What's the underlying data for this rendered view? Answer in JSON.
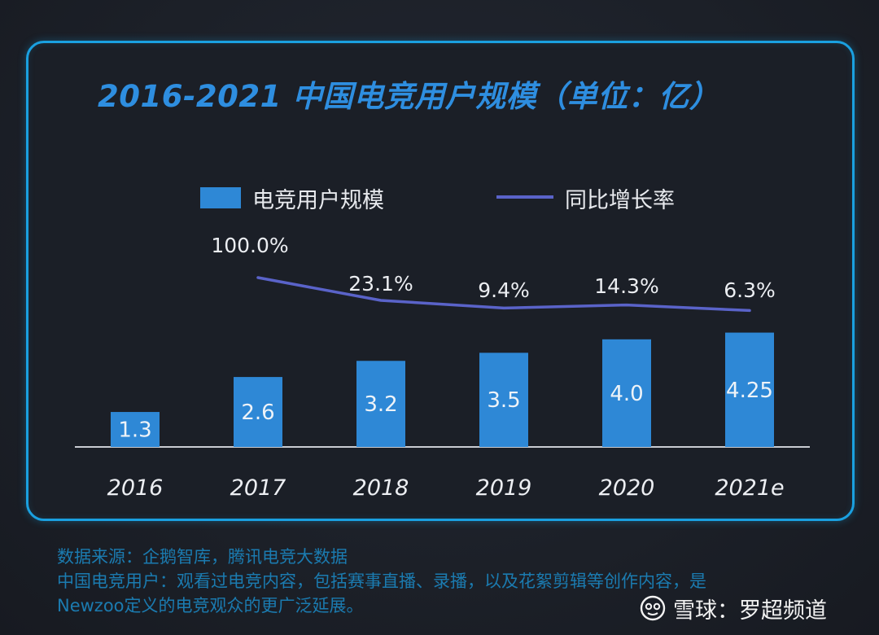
{
  "title": "2016-2021 中国电竞用户规模（单位：亿）",
  "legend": {
    "bar_label": "电竞用户规模",
    "line_label": "同比增长率"
  },
  "chart_data": {
    "type": "bar",
    "categories": [
      "2016",
      "2017",
      "2018",
      "2019",
      "2020",
      "2021e"
    ],
    "series": [
      {
        "name": "电竞用户规模",
        "type": "bar",
        "values": [
          1.3,
          2.6,
          3.2,
          3.5,
          4.0,
          4.25
        ],
        "labels": [
          "1.3",
          "2.6",
          "3.2",
          "3.5",
          "4.0",
          "4.25"
        ],
        "color": "#2e88d6"
      },
      {
        "name": "同比增长率",
        "type": "line",
        "values": [
          null,
          100.0,
          23.1,
          9.4,
          14.3,
          6.3
        ],
        "labels": [
          "",
          "100.0%",
          "23.1%",
          "9.4%",
          "14.3%",
          "6.3%"
        ],
        "color": "#5a63c9"
      }
    ],
    "ylim": [
      0,
      4.6
    ],
    "grid": false,
    "legend_position": "top"
  },
  "footer": {
    "line1": "数据来源：企鹅智库，腾讯电竞大数据",
    "line2": "中国电竞用户：观看过电竞内容，包括赛事直播、录播，以及花絮剪辑等创作内容，是",
    "line3": "Newzoo定义的电竞观众的更广泛延展。"
  },
  "watermark": {
    "text": "雪球：罗超频道",
    "icon": "xueqiu-logo-icon"
  },
  "colors": {
    "panel_border": "#1aa0e0",
    "title": "#2e8ee0",
    "bar": "#2e88d6",
    "line": "#5a63c9",
    "footer": "#1b7bb0"
  }
}
